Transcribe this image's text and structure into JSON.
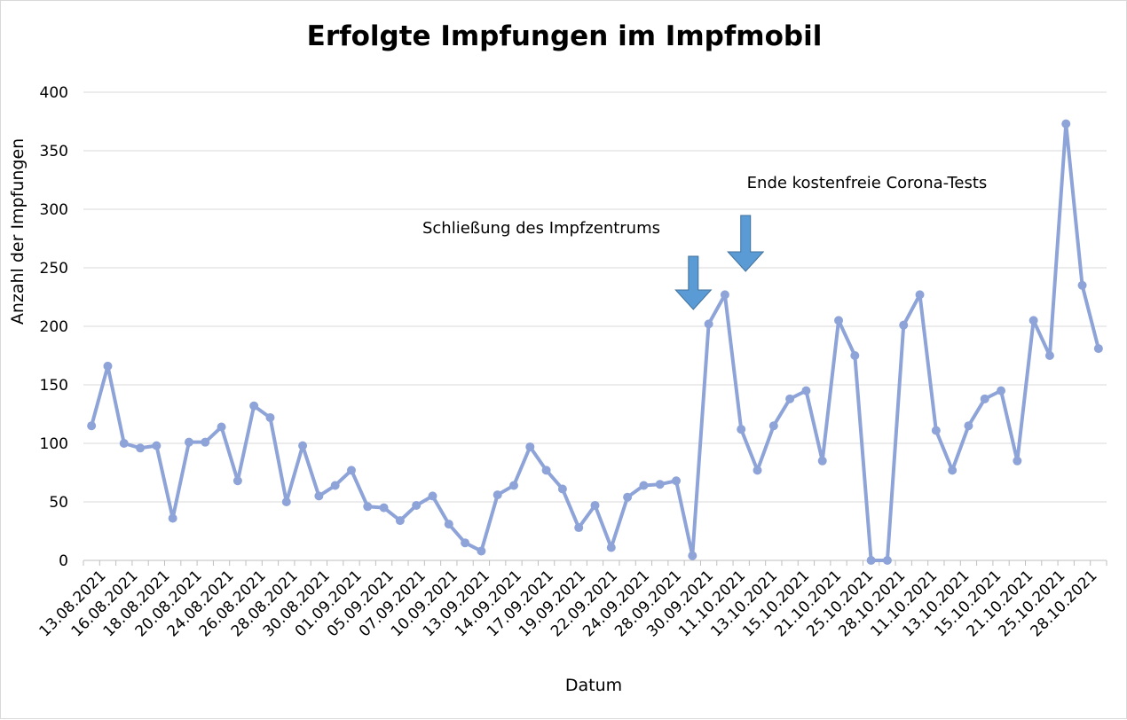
{
  "chart_data": {
    "type": "line",
    "title": "Erfolgte Impfungen im Impfmobil",
    "xlabel": "Datum",
    "ylabel": "Anzahl der Impfungen",
    "ylim": [
      0,
      400
    ],
    "yticks": [
      0,
      50,
      100,
      150,
      200,
      250,
      300,
      350,
      400
    ],
    "grid": true,
    "legend": "none",
    "line_color": "#8ea4d8",
    "arrow_color": "#5b9bd5",
    "x_tick_labels": [
      "13.08.2021",
      "16.08.2021",
      "18.08.2021",
      "20.08.2021",
      "24.08.2021",
      "26.08.2021",
      "28.08.2021",
      "30.08.2021",
      "01.09.2021",
      "05.09.2021",
      "07.09.2021",
      "10.09.2021",
      "13.09.2021",
      "14.09.2021",
      "17.09.2021",
      "19.09.2021",
      "22.09.2021",
      "24.09.2021",
      "28.09.2021",
      "30.09.2021",
      "11.10.2021",
      "13.10.2021",
      "15.10.2021",
      "21.10.2021",
      "25.10.2021",
      "28.10.2021",
      "11.10.2021",
      "13.10.2021",
      "15.10.2021",
      "21.10.2021",
      "25.10.2021",
      "28.10.2021"
    ],
    "values": [
      115,
      166,
      100,
      96,
      98,
      36,
      101,
      101,
      114,
      68,
      132,
      122,
      50,
      98,
      55,
      64,
      77,
      46,
      45,
      34,
      47,
      55,
      31,
      15,
      8,
      56,
      64,
      97,
      77,
      61,
      28,
      47,
      11,
      54,
      64,
      65,
      68,
      4,
      202,
      227,
      112,
      77,
      115,
      138,
      145,
      85,
      205,
      175,
      0,
      0,
      201,
      227,
      111,
      77,
      115,
      138,
      145,
      85,
      205,
      175,
      373,
      235,
      181
    ],
    "annotations": [
      {
        "text": "Schließung des Impfzentrums",
        "index": 37
      },
      {
        "text": "Ende kostenfreie Corona-Tests",
        "index": 40
      }
    ]
  }
}
